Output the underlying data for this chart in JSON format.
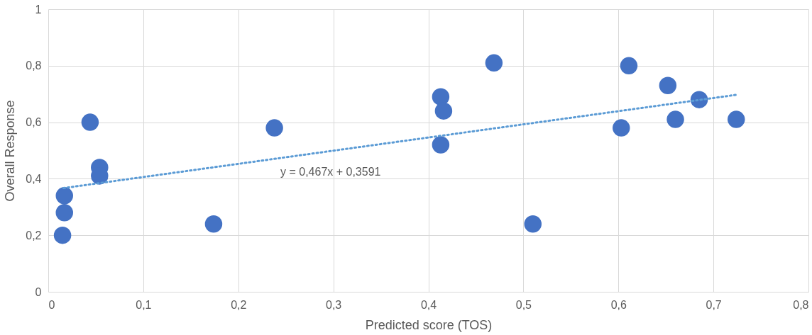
{
  "chart_data": {
    "type": "scatter",
    "xlabel": "Predicted score (TOS)",
    "ylabel": "Overall Response",
    "x": [
      0.015,
      0.017,
      0.017,
      0.044,
      0.054,
      0.054,
      0.174,
      0.238,
      0.413,
      0.416,
      0.413,
      0.469,
      0.51,
      0.611,
      0.652,
      0.685,
      0.66,
      0.603,
      0.724
    ],
    "series": [
      {
        "type": "scatter",
        "color": "#4472c4",
        "marker": "circle",
        "values": [
          0.2,
          0.28,
          0.34,
          0.6,
          0.44,
          0.41,
          0.24,
          0.58,
          0.69,
          0.64,
          0.52,
          0.81,
          0.24,
          0.8,
          0.73,
          0.68,
          0.61,
          0.58,
          0.61
        ]
      },
      {
        "type": "line",
        "color": "#5b9bd5",
        "line_style": "dotted",
        "x": [
          0.016,
          0.724
        ],
        "values": [
          0.367,
          0.697
        ]
      }
    ],
    "annotations": [
      "y = 0,467x + 0,3591"
    ],
    "xlim": [
      0,
      0.8
    ],
    "xticks": [
      0,
      {
        "value": 0.1,
        "label": "0,1"
      },
      {
        "value": 0.2,
        "label": "0,2"
      },
      {
        "value": 0.3,
        "label": "0,3"
      },
      {
        "value": 0.4,
        "label": "0,4"
      },
      {
        "value": 0.5,
        "label": "0,5"
      },
      {
        "value": 0.6,
        "label": "0,6"
      },
      {
        "value": 0.7,
        "label": "0,7"
      },
      {
        "value": 0.8,
        "label": "0,8"
      }
    ],
    "ylim": [
      0,
      1
    ],
    "yticks": [
      0,
      {
        "value": 0.2,
        "label": "0,2"
      },
      {
        "value": 0.4,
        "label": "0,4"
      },
      {
        "value": 0.6,
        "label": "0,6"
      },
      {
        "value": 0.8,
        "label": "0,8"
      },
      1
    ],
    "grid": true
  }
}
